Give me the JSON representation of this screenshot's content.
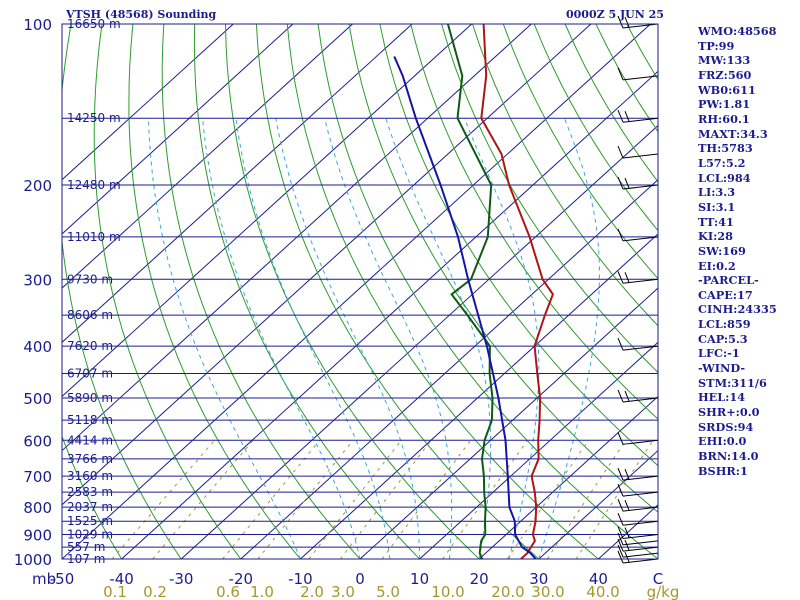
{
  "header": {
    "title": "VTSH (48568) Sounding",
    "datetime": "0000Z  5 JUN 25"
  },
  "indices": [
    "WMO:48568",
    "TP:99",
    "MW:133",
    "FRZ:560",
    "WB0:611",
    "PW:1.81",
    "RH:60.1",
    "MAXT:34.3",
    "TH:5783",
    "L57:5.2",
    "LCL:984",
    "LI:3.3",
    "SI:3.1",
    "TT:41",
    "KI:28",
    "SW:169",
    "EI:0.2",
    "-PARCEL-",
    "CAPE:17",
    "CINH:24335",
    "LCL:859",
    "CAP:5.3",
    "LFC:-1",
    "-WIND-",
    "STM:311/6",
    "HEL:14",
    "SHR+:0.0",
    "SRDS:94",
    "EHI:0.0",
    "BRN:14.0",
    "BSHR:1"
  ],
  "colors": {
    "frame": "#1c1c8f",
    "isobar": "#1c1c8f",
    "isotherm": "#1c1c8f",
    "dry_adiabat": "#2e9c2e",
    "moist_adiabat": "#39a7d8",
    "mixing_ratio": "#a8962c",
    "temperature": "#b01414",
    "dewpoint": "#0e5a14",
    "parcel": "#1414a6",
    "wind_barb": "#000000"
  },
  "chart_data": {
    "type": "skew-t log-p",
    "title": "VTSH (48568) Sounding",
    "pressure_range_hPa": [
      1000,
      100
    ],
    "temperature_range_C": [
      -50,
      50
    ],
    "pressure_ticks": [
      100,
      200,
      300,
      400,
      500,
      600,
      700,
      800,
      900,
      1000
    ],
    "pressure_label_prefix": "mb",
    "temperature_ticks": [
      "-50",
      "-40",
      "-30",
      "-20",
      "-10",
      "0",
      "10",
      "20",
      "30",
      "40",
      "C"
    ],
    "mixing_ratio_ticks": [
      "0.1",
      "0.2",
      "0.6",
      "1.0",
      "2.0",
      "3.0",
      "5.0",
      "10.0",
      "20.0",
      "30.0",
      "40.0",
      "g/kg"
    ],
    "mixing_ratio_values": [
      0.1,
      0.2,
      0.6,
      1.0,
      2.0,
      3.0,
      5.0,
      10.0,
      20.0,
      30.0,
      40.0
    ],
    "height_labels": [
      {
        "p": 100,
        "label": "16650 m"
      },
      {
        "p": 150,
        "label": "14250 m"
      },
      {
        "p": 200,
        "label": "12480 m"
      },
      {
        "p": 250,
        "label": "11010 m"
      },
      {
        "p": 300,
        "label": "9730 m"
      },
      {
        "p": 350,
        "label": "8606 m"
      },
      {
        "p": 400,
        "label": "7620 m"
      },
      {
        "p": 450,
        "label": "6707 m"
      },
      {
        "p": 500,
        "label": "5890 m"
      },
      {
        "p": 550,
        "label": "5118 m"
      },
      {
        "p": 600,
        "label": "4414 m"
      },
      {
        "p": 650,
        "label": "3766 m"
      },
      {
        "p": 700,
        "label": "3160 m"
      },
      {
        "p": 750,
        "label": "2583 m"
      },
      {
        "p": 800,
        "label": "2037 m"
      },
      {
        "p": 850,
        "label": "1525 m"
      },
      {
        "p": 900,
        "label": "1029 m"
      },
      {
        "p": 950,
        "label": "557 m"
      },
      {
        "p": 1000,
        "label": "107 m"
      }
    ],
    "isotherms_C": [
      -120,
      -110,
      -100,
      -90,
      -80,
      -70,
      -60,
      -50,
      -40,
      -30,
      -20,
      -10,
      0,
      10,
      20,
      30,
      40,
      50
    ],
    "dry_adiabats_C": [
      -40,
      -30,
      -20,
      -10,
      0,
      10,
      20,
      30,
      40,
      50,
      60,
      70,
      80,
      90,
      100,
      110,
      120,
      130,
      140,
      150,
      160,
      170,
      180,
      190
    ],
    "moist_adiabats_C": [
      -10,
      0,
      5,
      10,
      15,
      20,
      25,
      30
    ],
    "series": [
      {
        "name": "temperature",
        "points": [
          {
            "p": 1000,
            "t": 27.0
          },
          {
            "p": 975,
            "t": 27.0
          },
          {
            "p": 950,
            "t": 26.5
          },
          {
            "p": 925,
            "t": 26.0
          },
          {
            "p": 900,
            "t": 24.5
          },
          {
            "p": 850,
            "t": 22.5
          },
          {
            "p": 800,
            "t": 20.0
          },
          {
            "p": 750,
            "t": 17.0
          },
          {
            "p": 700,
            "t": 13.5
          },
          {
            "p": 650,
            "t": 11.5
          },
          {
            "p": 600,
            "t": 8.0
          },
          {
            "p": 550,
            "t": 4.5
          },
          {
            "p": 500,
            "t": 0.5
          },
          {
            "p": 450,
            "t": -4.5
          },
          {
            "p": 400,
            "t": -10.0
          },
          {
            "p": 350,
            "t": -14.0
          },
          {
            "p": 320,
            "t": -16.5
          },
          {
            "p": 300,
            "t": -21.0
          },
          {
            "p": 250,
            "t": -31.0
          },
          {
            "p": 200,
            "t": -44.0
          },
          {
            "p": 175,
            "t": -51.0
          },
          {
            "p": 150,
            "t": -61.0
          },
          {
            "p": 125,
            "t": -68.0
          },
          {
            "p": 100,
            "t": -78.0
          }
        ]
      },
      {
        "name": "dewpoint",
        "points": [
          {
            "p": 1000,
            "t": 20.5
          },
          {
            "p": 975,
            "t": 19.0
          },
          {
            "p": 950,
            "t": 18.0
          },
          {
            "p": 925,
            "t": 17.0
          },
          {
            "p": 900,
            "t": 16.5
          },
          {
            "p": 850,
            "t": 14.0
          },
          {
            "p": 800,
            "t": 11.5
          },
          {
            "p": 750,
            "t": 8.5
          },
          {
            "p": 700,
            "t": 5.5
          },
          {
            "p": 650,
            "t": 2.0
          },
          {
            "p": 600,
            "t": -1.0
          },
          {
            "p": 550,
            "t": -3.5
          },
          {
            "p": 500,
            "t": -7.5
          },
          {
            "p": 450,
            "t": -12.5
          },
          {
            "p": 400,
            "t": -17.5
          },
          {
            "p": 350,
            "t": -27.0
          },
          {
            "p": 320,
            "t": -33.5
          },
          {
            "p": 300,
            "t": -33.0
          },
          {
            "p": 250,
            "t": -38.0
          },
          {
            "p": 200,
            "t": -47.0
          },
          {
            "p": 150,
            "t": -65.0
          },
          {
            "p": 125,
            "t": -72.0
          },
          {
            "p": 100,
            "t": -84.0
          }
        ]
      },
      {
        "name": "parcel",
        "points": [
          {
            "p": 1000,
            "t": 29.5
          },
          {
            "p": 975,
            "t": 27.5
          },
          {
            "p": 950,
            "t": 25.0
          },
          {
            "p": 900,
            "t": 21.5
          },
          {
            "p": 850,
            "t": 19.0
          },
          {
            "p": 800,
            "t": 15.5
          },
          {
            "p": 700,
            "t": 9.5
          },
          {
            "p": 600,
            "t": 2.5
          },
          {
            "p": 500,
            "t": -6.5
          },
          {
            "p": 400,
            "t": -18.0
          },
          {
            "p": 300,
            "t": -33.5
          },
          {
            "p": 250,
            "t": -43.0
          },
          {
            "p": 200,
            "t": -55.5
          },
          {
            "p": 150,
            "t": -72.0
          },
          {
            "p": 125,
            "t": -82.0
          },
          {
            "p": 115,
            "t": -87.0
          }
        ]
      }
    ],
    "wind_barbs_hPa": [
      100,
      125,
      150,
      175,
      200,
      250,
      300,
      400,
      500,
      600,
      700,
      750,
      800,
      850,
      900,
      925,
      950,
      975,
      1000
    ]
  }
}
